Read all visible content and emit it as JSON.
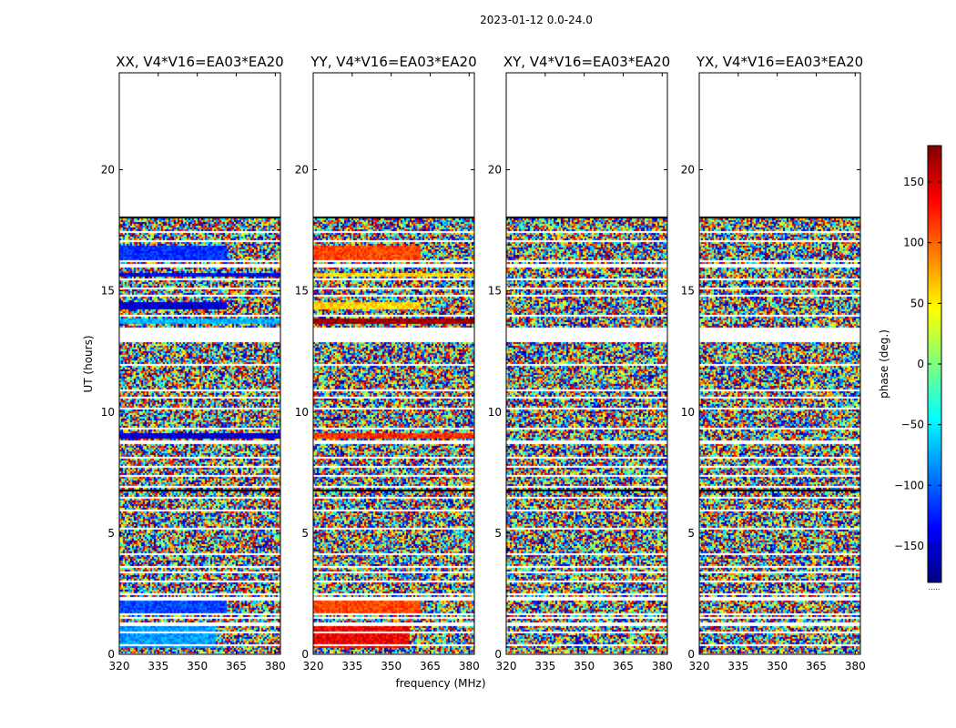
{
  "figure_title": "2023-01-12 0.0-24.0",
  "x_axis_label": "frequency (MHz)",
  "y_axis_label": "UT (hours)",
  "colorbar": {
    "label": "phase (deg.)",
    "range": [
      -180,
      180
    ],
    "ticks": [
      150,
      100,
      50,
      0,
      -50,
      -100,
      -150
    ],
    "tick_labels": [
      "150",
      "100",
      "50",
      "0",
      "−50",
      "−100",
      "−150"
    ],
    "colormap": [
      "#00007f",
      "#0000ff",
      "#007fff",
      "#00ffff",
      "#7fff7f",
      "#ffff00",
      "#ff7f00",
      "#ff0000",
      "#7f0000"
    ]
  },
  "chart_data": [
    {
      "type": "heatmap",
      "title": "XX, V4*V16=EA03*EA20",
      "xlabel": "frequency (MHz)",
      "ylabel": "UT (hours)",
      "xlim": [
        320,
        382
      ],
      "ylim": [
        0,
        24
      ],
      "xticks": [
        320,
        335,
        350,
        365,
        380
      ],
      "yticks": [
        0,
        5,
        10,
        15,
        20
      ],
      "value": "phase (deg.)",
      "data_end_hour": 18.1,
      "coherent_bands": [
        {
          "ut": [
            0.3,
            1.2
          ],
          "phase": -80,
          "freq": [
            320,
            357
          ]
        },
        {
          "ut": [
            1.7,
            2.2
          ],
          "phase": -110,
          "freq": [
            320,
            361
          ]
        },
        {
          "ut": [
            8.9,
            9.1
          ],
          "phase": -150,
          "freq": [
            320,
            382
          ]
        },
        {
          "ut": [
            14.2,
            14.5
          ],
          "phase": -150,
          "freq": [
            320,
            361
          ]
        },
        {
          "ut": [
            13.65,
            13.85
          ],
          "phase": -70,
          "freq": [
            320,
            382
          ]
        },
        {
          "ut": [
            15.6,
            15.75
          ],
          "phase": -140,
          "freq": [
            320,
            382
          ]
        },
        {
          "ut": [
            16.3,
            16.9
          ],
          "phase": -120,
          "freq": [
            320,
            361
          ]
        }
      ]
    },
    {
      "type": "heatmap",
      "title": "YY, V4*V16=EA03*EA20",
      "xlabel": "frequency (MHz)",
      "ylabel": "UT (hours)",
      "xlim": [
        320,
        382
      ],
      "ylim": [
        0,
        24
      ],
      "xticks": [
        320,
        335,
        350,
        365,
        380
      ],
      "yticks": [
        0,
        5,
        10,
        15,
        20
      ],
      "value": "phase (deg.)",
      "data_end_hour": 18.1,
      "coherent_bands": [
        {
          "ut": [
            0.3,
            1.2
          ],
          "phase": 140,
          "freq": [
            320,
            357
          ]
        },
        {
          "ut": [
            1.7,
            2.2
          ],
          "phase": 110,
          "freq": [
            320,
            361
          ]
        },
        {
          "ut": [
            8.9,
            9.1
          ],
          "phase": 120,
          "freq": [
            320,
            382
          ]
        },
        {
          "ut": [
            14.2,
            14.5
          ],
          "phase": 60,
          "freq": [
            320,
            361
          ]
        },
        {
          "ut": [
            13.65,
            13.85
          ],
          "phase": 170,
          "freq": [
            320,
            382
          ]
        },
        {
          "ut": [
            15.6,
            15.75
          ],
          "phase": 60,
          "freq": [
            320,
            382
          ]
        },
        {
          "ut": [
            16.3,
            16.9
          ],
          "phase": 110,
          "freq": [
            320,
            361
          ]
        }
      ]
    },
    {
      "type": "heatmap",
      "title": "XY, V4*V16=EA03*EA20",
      "xlabel": "frequency (MHz)",
      "ylabel": "UT (hours)",
      "xlim": [
        320,
        382
      ],
      "ylim": [
        0,
        24
      ],
      "xticks": [
        320,
        335,
        350,
        365,
        380
      ],
      "yticks": [
        0,
        5,
        10,
        15,
        20
      ],
      "value": "phase (deg.)",
      "data_end_hour": 18.1,
      "coherent_bands": []
    },
    {
      "type": "heatmap",
      "title": "YX, V4*V16=EA03*EA20",
      "xlabel": "frequency (MHz)",
      "ylabel": "UT (hours)",
      "xlim": [
        320,
        382
      ],
      "ylim": [
        0,
        24
      ],
      "xticks": [
        320,
        335,
        350,
        365,
        380
      ],
      "yticks": [
        0,
        5,
        10,
        15,
        20
      ],
      "value": "phase (deg.)",
      "data_end_hour": 18.1,
      "coherent_bands": []
    }
  ]
}
